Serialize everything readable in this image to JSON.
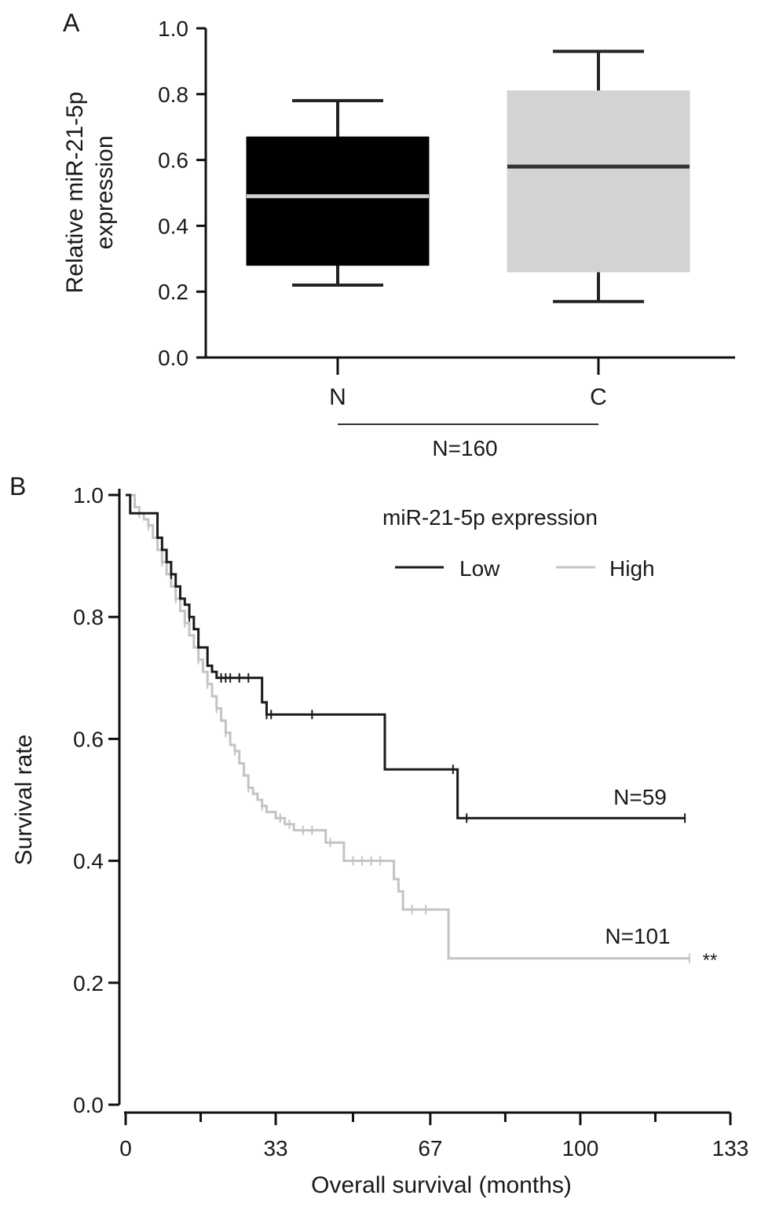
{
  "panels": {
    "a": {
      "letter": "A",
      "group_note": "N=160"
    },
    "b": {
      "letter": "B",
      "legend_title": "miR-21-5p expression",
      "n_low": "N=59",
      "n_high": "N=101",
      "significance": "**"
    }
  },
  "chart_data": [
    {
      "type": "box",
      "ylabel": [
        "Relative miR-21-5p",
        "expression"
      ],
      "ylim": [
        0.0,
        1.0
      ],
      "yticks": [
        "0.0",
        "0.2",
        "0.4",
        "0.6",
        "0.8",
        "1.0"
      ],
      "categories": [
        "N",
        "C"
      ],
      "colors": [
        "#000000",
        "#d3d3d3"
      ],
      "median_colors": [
        "#d0d0d0",
        "#333333"
      ],
      "boxes": [
        {
          "category": "N",
          "whisker_low": 0.22,
          "q1": 0.28,
          "median": 0.49,
          "q3": 0.67,
          "whisker_high": 0.78
        },
        {
          "category": "C",
          "whisker_low": 0.17,
          "q1": 0.26,
          "median": 0.58,
          "q3": 0.81,
          "whisker_high": 0.93
        }
      ],
      "annotation": "N=160",
      "grid": false
    },
    {
      "type": "line",
      "subtype": "kaplan-meier",
      "xlabel": "Overall survival (months)",
      "ylabel": "Survival rate",
      "xlim": [
        0,
        133
      ],
      "ylim": [
        0.0,
        1.0
      ],
      "xticks": [
        "0",
        "33",
        "67",
        "100",
        "133"
      ],
      "yticks": [
        "0.0",
        "0.2",
        "0.4",
        "0.6",
        "0.8",
        "1.0"
      ],
      "legend": {
        "title": "miR-21-5p expression",
        "placement": "top-right"
      },
      "grid": false,
      "series": [
        {
          "name": "Low",
          "color": "#1a1a1a",
          "steps": [
            [
              0,
              1.0
            ],
            [
              1,
              0.97
            ],
            [
              6,
              0.97
            ],
            [
              7,
              0.93
            ],
            [
              8,
              0.91
            ],
            [
              9,
              0.89
            ],
            [
              10,
              0.87
            ],
            [
              11,
              0.85
            ],
            [
              12,
              0.83
            ],
            [
              13,
              0.82
            ],
            [
              14,
              0.8
            ],
            [
              15,
              0.78
            ],
            [
              16,
              0.75
            ],
            [
              18,
              0.72
            ],
            [
              19,
              0.71
            ],
            [
              20,
              0.7
            ],
            [
              29,
              0.7
            ],
            [
              30,
              0.66
            ],
            [
              31,
              0.64
            ],
            [
              56,
              0.64
            ],
            [
              57,
              0.55
            ],
            [
              72,
              0.55
            ],
            [
              73,
              0.47
            ],
            [
              123,
              0.47
            ]
          ],
          "censors": [
            [
              10,
              0.87
            ],
            [
              14,
              0.8
            ],
            [
              21,
              0.7
            ],
            [
              22,
              0.7
            ],
            [
              23,
              0.7
            ],
            [
              25,
              0.7
            ],
            [
              27,
              0.7
            ],
            [
              31,
              0.64
            ],
            [
              32,
              0.64
            ],
            [
              41,
              0.64
            ],
            [
              72,
              0.55
            ],
            [
              75,
              0.47
            ],
            [
              123,
              0.47
            ]
          ],
          "label": "N=59"
        },
        {
          "name": "High",
          "color": "#c4c4c4",
          "steps": [
            [
              0,
              1.0
            ],
            [
              2,
              0.98
            ],
            [
              3,
              0.97
            ],
            [
              4,
              0.96
            ],
            [
              5,
              0.95
            ],
            [
              6,
              0.93
            ],
            [
              7,
              0.91
            ],
            [
              8,
              0.89
            ],
            [
              9,
              0.87
            ],
            [
              10,
              0.85
            ],
            [
              11,
              0.83
            ],
            [
              12,
              0.81
            ],
            [
              13,
              0.79
            ],
            [
              14,
              0.77
            ],
            [
              15,
              0.75
            ],
            [
              16,
              0.73
            ],
            [
              17,
              0.71
            ],
            [
              18,
              0.69
            ],
            [
              19,
              0.67
            ],
            [
              20,
              0.65
            ],
            [
              21,
              0.63
            ],
            [
              22,
              0.61
            ],
            [
              23,
              0.59
            ],
            [
              24,
              0.58
            ],
            [
              25,
              0.56
            ],
            [
              26,
              0.54
            ],
            [
              27,
              0.52
            ],
            [
              28,
              0.51
            ],
            [
              29,
              0.5
            ],
            [
              30,
              0.49
            ],
            [
              31,
              0.48
            ],
            [
              33,
              0.47
            ],
            [
              35,
              0.46
            ],
            [
              37,
              0.45
            ],
            [
              43,
              0.45
            ],
            [
              44,
              0.43
            ],
            [
              47,
              0.43
            ],
            [
              48,
              0.4
            ],
            [
              58,
              0.4
            ],
            [
              59,
              0.37
            ],
            [
              60,
              0.35
            ],
            [
              61,
              0.32
            ],
            [
              70,
              0.32
            ],
            [
              71,
              0.24
            ],
            [
              124,
              0.24
            ]
          ],
          "censors": [
            [
              3,
              0.97
            ],
            [
              5,
              0.95
            ],
            [
              8,
              0.89
            ],
            [
              11,
              0.83
            ],
            [
              13,
              0.79
            ],
            [
              16,
              0.73
            ],
            [
              18,
              0.69
            ],
            [
              20,
              0.65
            ],
            [
              22,
              0.61
            ],
            [
              24,
              0.58
            ],
            [
              27,
              0.52
            ],
            [
              30,
              0.49
            ],
            [
              34,
              0.47
            ],
            [
              36,
              0.46
            ],
            [
              39,
              0.45
            ],
            [
              41,
              0.45
            ],
            [
              45,
              0.43
            ],
            [
              50,
              0.4
            ],
            [
              52,
              0.4
            ],
            [
              54,
              0.4
            ],
            [
              56,
              0.4
            ],
            [
              63,
              0.32
            ],
            [
              66,
              0.32
            ],
            [
              124,
              0.24
            ]
          ],
          "label": "N=101"
        }
      ]
    }
  ]
}
